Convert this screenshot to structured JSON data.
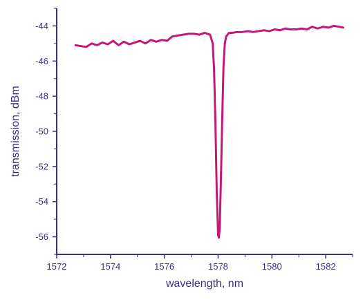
{
  "chart_data": {
    "type": "line",
    "title": "",
    "xlabel": "wavelength, nm",
    "ylabel": "transmission, dBm",
    "xlim": [
      1572,
      1583
    ],
    "ylim": [
      -57,
      -43
    ],
    "xticks": [
      1572,
      1574,
      1576,
      1578,
      1580,
      1582
    ],
    "yticks": [
      -44,
      -46,
      -48,
      -50,
      -52,
      -54,
      -56
    ],
    "x_tick_labels": [
      "1572",
      "1574",
      "1576",
      "1578",
      "1580",
      "1582"
    ],
    "y_tick_labels": [
      "-44",
      "-46",
      "-48",
      "-50",
      "-52",
      "-54",
      "-56"
    ],
    "grid": false,
    "legend": "none",
    "series": [
      {
        "color": "#c2187a",
        "x": [
          1572.7,
          1572.9,
          1573.1,
          1573.3,
          1573.5,
          1573.7,
          1573.9,
          1574.1,
          1574.3,
          1574.5,
          1574.7,
          1574.9,
          1575.1,
          1575.3,
          1575.5,
          1575.7,
          1575.9,
          1576.1,
          1576.3,
          1576.5,
          1576.7,
          1576.9,
          1577.1,
          1577.3,
          1577.5,
          1577.7,
          1577.8,
          1577.85,
          1577.9,
          1577.95,
          1578.0,
          1578.03,
          1578.06,
          1578.1,
          1578.15,
          1578.2,
          1578.25,
          1578.3,
          1578.4,
          1578.5,
          1578.7,
          1578.9,
          1579.1,
          1579.3,
          1579.5,
          1579.7,
          1579.9,
          1580.1,
          1580.3,
          1580.5,
          1580.7,
          1580.9,
          1581.1,
          1581.3,
          1581.5,
          1581.7,
          1581.9,
          1582.1,
          1582.3,
          1582.5,
          1582.65
        ],
        "y": [
          -45.1,
          -45.15,
          -45.2,
          -45.0,
          -45.1,
          -44.95,
          -45.05,
          -44.85,
          -45.1,
          -44.9,
          -45.05,
          -44.95,
          -44.85,
          -45.0,
          -44.8,
          -44.9,
          -44.8,
          -44.85,
          -44.6,
          -44.55,
          -44.5,
          -44.45,
          -44.45,
          -44.5,
          -44.4,
          -44.5,
          -45.0,
          -46.5,
          -49.5,
          -53.5,
          -55.9,
          -56.05,
          -55.5,
          -53.0,
          -49.5,
          -46.3,
          -45.0,
          -44.6,
          -44.4,
          -44.4,
          -44.35,
          -44.35,
          -44.3,
          -44.35,
          -44.3,
          -44.25,
          -44.3,
          -44.2,
          -44.25,
          -44.15,
          -44.2,
          -44.2,
          -44.15,
          -44.2,
          -44.05,
          -44.15,
          -44.05,
          -44.1,
          -44.0,
          -44.05,
          -44.1
        ]
      }
    ]
  }
}
